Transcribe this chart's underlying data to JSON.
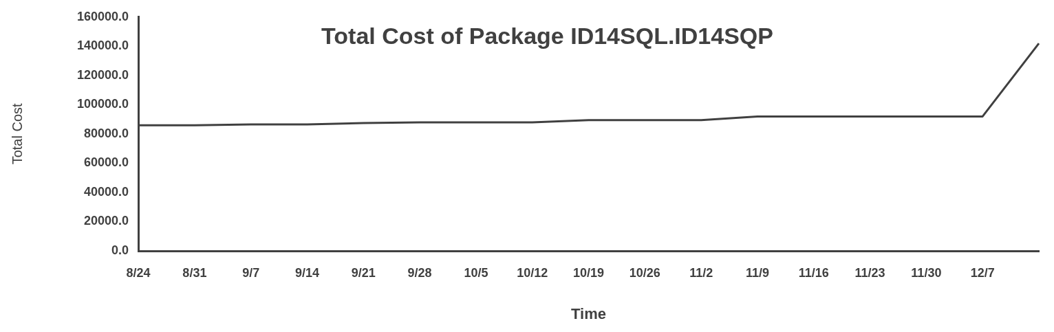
{
  "chart_data": {
    "type": "line",
    "title": "Total Cost of Package ID14SQL.ID14SQP",
    "xlabel": "Time",
    "ylabel": "Total Cost",
    "categories": [
      "8/24",
      "8/31",
      "9/7",
      "9/14",
      "9/21",
      "9/28",
      "10/5",
      "10/12",
      "10/19",
      "10/26",
      "11/2",
      "11/9",
      "11/16",
      "11/23",
      "11/30",
      "12/7",
      null
    ],
    "series": [
      {
        "color": "#404040",
        "values": [
          86000,
          86000,
          86500,
          86500,
          87500,
          88000,
          88000,
          88000,
          89500,
          89500,
          89500,
          92000,
          92000,
          92000,
          92000,
          92000,
          142000
        ]
      }
    ],
    "ylim": [
      0,
      160000
    ],
    "yticks": [
      {
        "value": 0,
        "label": "0.0"
      },
      {
        "value": 20000,
        "label": "20000.0"
      },
      {
        "value": 40000,
        "label": "40000.0"
      },
      {
        "value": 60000,
        "label": "60000.0"
      },
      {
        "value": 80000,
        "label": "80000.0"
      },
      {
        "value": 100000,
        "label": "100000.0"
      },
      {
        "value": 120000,
        "label": "120000.0"
      },
      {
        "value": 140000,
        "label": "140000.0"
      },
      {
        "value": 160000,
        "label": "160000.0"
      }
    ],
    "grid": false,
    "legend": false,
    "marker": "none",
    "line_style": "solid"
  }
}
